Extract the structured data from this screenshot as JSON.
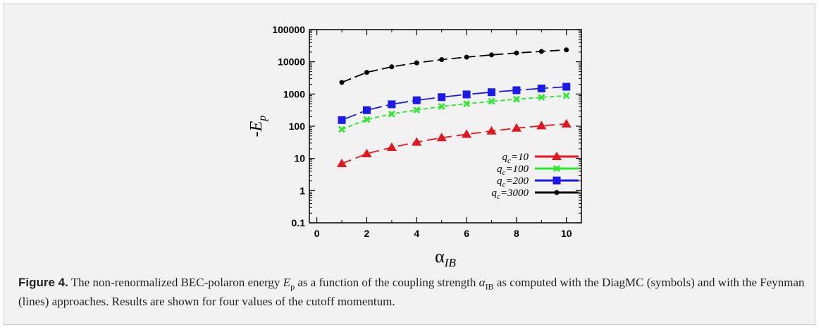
{
  "chart_data": {
    "type": "line",
    "xlabel": "α",
    "xlabel_sub": "IB",
    "ylabel": "-E",
    "ylabel_sub": "p",
    "xlim": [
      -0.3,
      10.6
    ],
    "ylim": [
      0.1,
      100000
    ],
    "y_scale": "log",
    "x_ticks": [
      0,
      2,
      4,
      6,
      8,
      10
    ],
    "y_ticks": [
      0.1,
      1,
      10,
      100,
      1000,
      10000,
      100000
    ],
    "y_tick_labels": [
      "0.1",
      "1",
      "10",
      "100",
      "1000",
      "10000",
      "100000"
    ],
    "legend_position": "bottom-right",
    "legend_prefix": "q",
    "legend_prefix_sub": "c",
    "series": [
      {
        "name": "=10",
        "color": "#e8141b",
        "marker": "triangle",
        "dash": "14,7",
        "x": [
          1,
          2,
          3,
          4,
          5,
          6,
          7,
          8,
          9,
          10
        ],
        "y": [
          6.9,
          14,
          22,
          32,
          44,
          56,
          71,
          87,
          103,
          118
        ]
      },
      {
        "name": "=100",
        "color": "#22ee22",
        "marker": "cross",
        "dash": "6,4",
        "x": [
          1,
          2,
          3,
          4,
          5,
          6,
          7,
          8,
          9,
          10
        ],
        "y": [
          80,
          160,
          240,
          320,
          410,
          500,
          590,
          690,
          790,
          890
        ]
      },
      {
        "name": "=200",
        "color": "#1a1aee",
        "marker": "square",
        "dash": "22,6,4,6",
        "x": [
          1,
          2,
          3,
          4,
          5,
          6,
          7,
          8,
          9,
          10
        ],
        "y": [
          155,
          315,
          480,
          640,
          800,
          970,
          1140,
          1310,
          1490,
          1680
        ]
      },
      {
        "name": "=3000",
        "color": "#000000",
        "marker": "circle",
        "dash": "14,6",
        "x": [
          1,
          2,
          3,
          4,
          5,
          6,
          7,
          8,
          9,
          10
        ],
        "y": [
          2300,
          4700,
          7000,
          9300,
          11700,
          14000,
          16400,
          18800,
          21000,
          23500
        ]
      }
    ]
  },
  "caption": {
    "label": "Figure 4.",
    "text_1": " The non-renormalized BEC-polaron energy ",
    "ep_symbol": "E",
    "ep_sub": "p",
    "text_2": " as a function of the coupling strength ",
    "alpha_symbol": "α",
    "alpha_sub": "IB",
    "text_3": " as computed with the DiagMC (symbols) and with the Feynman (lines) approaches. Results are shown for four values of the cutoff momentum."
  }
}
